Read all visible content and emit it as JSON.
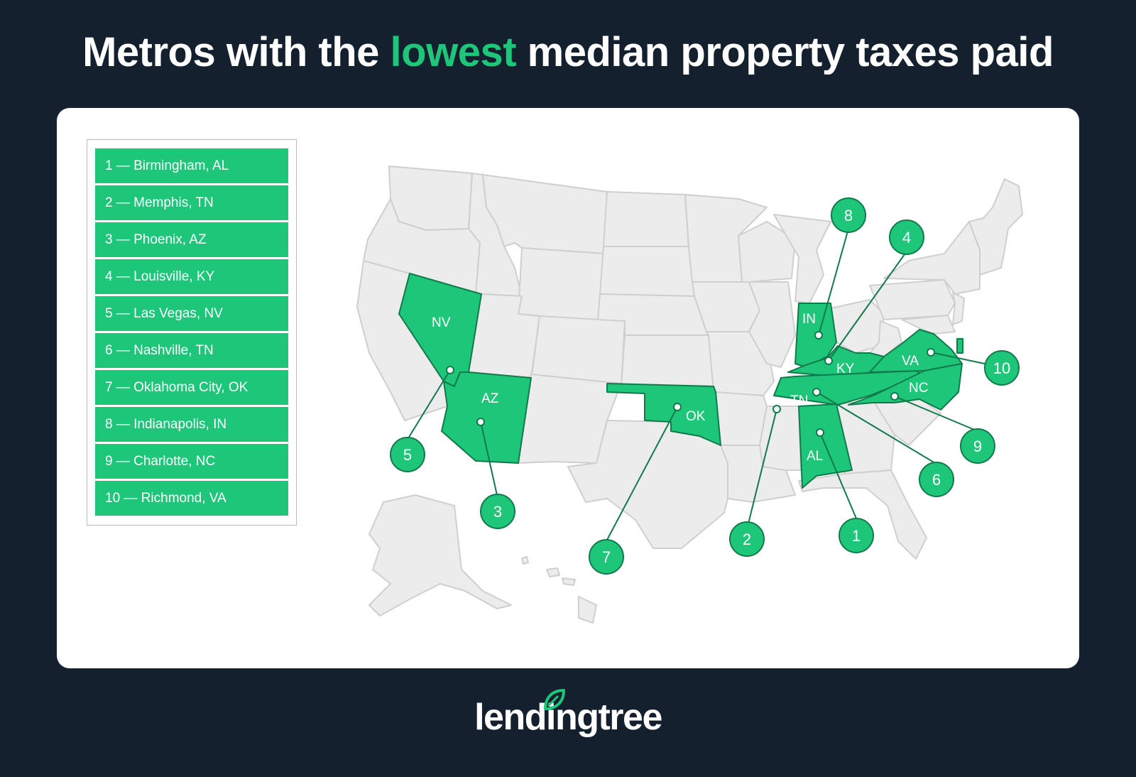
{
  "title": {
    "before": "Metros with the",
    "highlight": "lowest",
    "after": "median property taxes paid"
  },
  "legend": [
    "1 — Birmingham, AL",
    "2 — Memphis, TN",
    "3 — Phoenix, AZ",
    "4 — Louisville, KY",
    "5 — Las Vegas, NV",
    "6 — Nashville, TN",
    "7 — Oklahoma City, OK",
    "8 — Indianapolis, IN",
    "9 — Charlotte, NC",
    "10 — Richmond, VA"
  ],
  "state_labels": {
    "nv": "NV",
    "az": "AZ",
    "ok": "OK",
    "in": "IN",
    "ky": "KY",
    "tn": "TN",
    "al": "AL",
    "va": "VA",
    "nc": "NC"
  },
  "markers": [
    "1",
    "2",
    "3",
    "4",
    "5",
    "6",
    "7",
    "8",
    "9",
    "10"
  ],
  "logo": {
    "text": "lendingtree",
    "icon": "leaf-icon"
  },
  "colors": {
    "background": "#14202e",
    "accent": "#1ec67a",
    "accent_dark": "#117a4b",
    "state_fill": "#ececec"
  }
}
